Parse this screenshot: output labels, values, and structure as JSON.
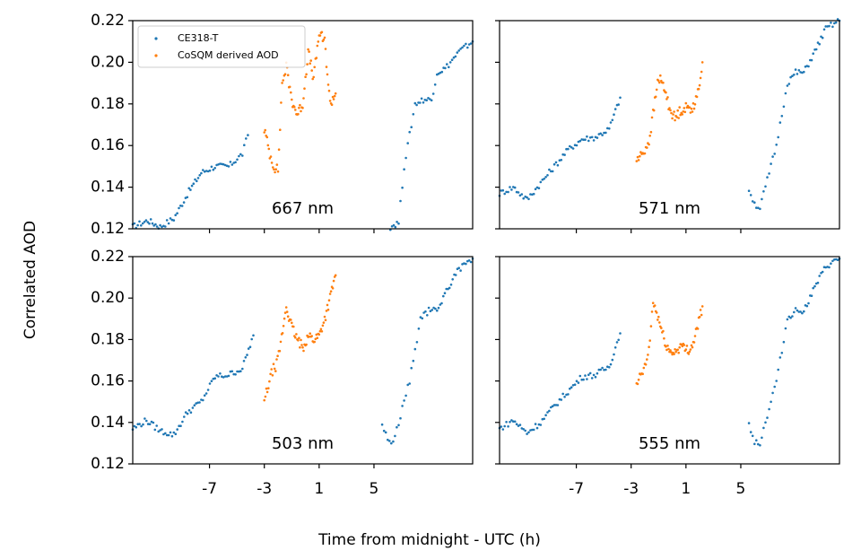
{
  "figure": {
    "xlabel": "Time from midnight - UTC (h)",
    "ylabel": "Correlated AOD"
  },
  "legend": {
    "entries": [
      {
        "label": "CE318-T",
        "color": "#1f77b4"
      },
      {
        "label": "CoSQM derived AOD",
        "color": "#ff7f0e"
      }
    ]
  },
  "chart_data": [
    {
      "type": "scatter",
      "panel_label": "667 nm",
      "xlim": [
        -12.6,
        12.2
      ],
      "ylim": [
        0.12,
        0.22
      ],
      "xticks": [
        "-7",
        "-3",
        "1",
        "5"
      ],
      "yticks": [
        "0.12",
        "0.14",
        "0.16",
        "0.18",
        "0.20",
        "0.22"
      ],
      "series": [
        {
          "name": "CE318-T",
          "color": "#1f77b4",
          "segments": [
            {
              "x": [
                -12.6,
                -11.5,
                -10.6,
                -9.6,
                -8.5,
                -7.6,
                -6.6,
                -5.6,
                -4.6,
                -4.2
              ],
              "y": [
                0.121,
                0.124,
                0.121,
                0.125,
                0.138,
                0.147,
                0.15,
                0.15,
                0.156,
                0.165
              ]
            },
            {
              "x": [
                6.2,
                6.8,
                7.2,
                7.6,
                8.0,
                8.6,
                9.2,
                9.6,
                10.2,
                11.2,
                12.2
              ],
              "y": [
                0.121,
                0.123,
                0.15,
                0.165,
                0.18,
                0.182,
                0.182,
                0.195,
                0.197,
                0.205,
                0.21
              ]
            }
          ]
        },
        {
          "name": "CoSQM derived AOD",
          "color": "#ff7f0e",
          "segments": [
            {
              "x": [
                -3.0,
                -2.6,
                -2.3,
                -2.0,
                -1.7,
                -1.4,
                -1.0,
                -0.6,
                -0.2,
                0.2,
                0.6,
                1.0,
                1.4,
                1.8,
                2.2
              ],
              "y": [
                0.168,
                0.156,
                0.15,
                0.148,
                0.19,
                0.198,
                0.182,
                0.175,
                0.18,
                0.205,
                0.192,
                0.214,
                0.21,
                0.18,
                0.185
              ]
            }
          ]
        }
      ]
    },
    {
      "type": "scatter",
      "panel_label": "571 nm",
      "xlim": [
        -12.6,
        12.2
      ],
      "ylim": [
        0.12,
        0.22
      ],
      "xticks": [
        "-7",
        "-3",
        "1",
        "5"
      ],
      "yticks": [
        "0.12",
        "0.14",
        "0.16",
        "0.18",
        "0.20",
        "0.22"
      ],
      "series": [
        {
          "name": "CE318-T",
          "color": "#1f77b4",
          "segments": [
            {
              "x": [
                -12.6,
                -11.6,
                -10.6,
                -9.6,
                -8.6,
                -7.6,
                -6.6,
                -5.6,
                -4.6,
                -3.8
              ],
              "y": [
                0.137,
                0.14,
                0.134,
                0.142,
                0.15,
                0.158,
                0.163,
                0.164,
                0.168,
                0.183
              ]
            },
            {
              "x": [
                5.6,
                6.0,
                6.4,
                6.8,
                7.2,
                7.6,
                8.0,
                8.4,
                9.0,
                9.6,
                10.4,
                11.2,
                12.2
              ],
              "y": [
                0.139,
                0.132,
                0.13,
                0.14,
                0.15,
                0.16,
                0.175,
                0.19,
                0.195,
                0.195,
                0.205,
                0.216,
                0.22
              ]
            }
          ]
        },
        {
          "name": "CoSQM derived AOD",
          "color": "#ff7f0e",
          "segments": [
            {
              "x": [
                -2.6,
                -2.3,
                -2.0,
                -1.7,
                -1.4,
                -1.0,
                -0.6,
                -0.2,
                0.2,
                0.6,
                1.0,
                1.4,
                1.8,
                2.2
              ],
              "y": [
                0.153,
                0.155,
                0.158,
                0.162,
                0.175,
                0.193,
                0.188,
                0.178,
                0.173,
                0.177,
                0.178,
                0.178,
                0.182,
                0.2
              ]
            }
          ]
        }
      ]
    },
    {
      "type": "scatter",
      "panel_label": "503 nm",
      "xlim": [
        -12.6,
        12.2
      ],
      "ylim": [
        0.12,
        0.22
      ],
      "xticks": [
        "-7",
        "-3",
        "1",
        "5"
      ],
      "yticks": [
        "0.12",
        "0.14",
        "0.16",
        "0.18",
        "0.20",
        "0.22"
      ],
      "series": [
        {
          "name": "CE318-T",
          "color": "#1f77b4",
          "segments": [
            {
              "x": [
                -12.6,
                -11.6,
                -10.6,
                -9.6,
                -8.6,
                -7.6,
                -6.6,
                -5.6,
                -4.6,
                -3.8
              ],
              "y": [
                0.137,
                0.141,
                0.136,
                0.134,
                0.145,
                0.15,
                0.162,
                0.163,
                0.166,
                0.182
              ]
            },
            {
              "x": [
                5.6,
                6.0,
                6.4,
                6.8,
                7.2,
                7.6,
                8.0,
                8.4,
                9.0,
                9.6,
                10.4,
                11.2,
                12.2
              ],
              "y": [
                0.139,
                0.132,
                0.13,
                0.14,
                0.15,
                0.16,
                0.175,
                0.19,
                0.194,
                0.194,
                0.205,
                0.214,
                0.219
              ]
            }
          ]
        },
        {
          "name": "CoSQM derived AOD",
          "color": "#ff7f0e",
          "segments": [
            {
              "x": [
                -3.0,
                -2.7,
                -2.4,
                -2.1,
                -1.8,
                -1.4,
                -1.0,
                -0.6,
                -0.2,
                0.2,
                0.6,
                1.0,
                1.4,
                1.8,
                2.2
              ],
              "y": [
                0.15,
                0.158,
                0.165,
                0.168,
                0.178,
                0.196,
                0.186,
                0.18,
                0.176,
                0.182,
                0.18,
                0.182,
                0.19,
                0.2,
                0.211
              ]
            }
          ]
        }
      ]
    },
    {
      "type": "scatter",
      "panel_label": "555 nm",
      "xlim": [
        -12.6,
        12.2
      ],
      "ylim": [
        0.12,
        0.22
      ],
      "xticks": [
        "-7",
        "-3",
        "1",
        "5"
      ],
      "yticks": [
        "0.12",
        "0.14",
        "0.16",
        "0.18",
        "0.20",
        "0.22"
      ],
      "series": [
        {
          "name": "CE318-T",
          "color": "#1f77b4",
          "segments": [
            {
              "x": [
                -12.6,
                -11.6,
                -10.6,
                -9.6,
                -8.6,
                -7.6,
                -6.6,
                -5.6,
                -4.6,
                -3.8
              ],
              "y": [
                0.137,
                0.141,
                0.135,
                0.14,
                0.148,
                0.155,
                0.162,
                0.163,
                0.167,
                0.183
              ]
            },
            {
              "x": [
                5.6,
                6.0,
                6.4,
                6.8,
                7.2,
                7.6,
                8.0,
                8.4,
                9.0,
                9.6,
                10.4,
                11.2,
                12.2
              ],
              "y": [
                0.139,
                0.131,
                0.13,
                0.14,
                0.15,
                0.16,
                0.175,
                0.19,
                0.194,
                0.194,
                0.205,
                0.215,
                0.219
              ]
            }
          ]
        },
        {
          "name": "CoSQM derived AOD",
          "color": "#ff7f0e",
          "segments": [
            {
              "x": [
                -2.6,
                -2.3,
                -2.0,
                -1.7,
                -1.4,
                -1.0,
                -0.6,
                -0.2,
                0.2,
                0.6,
                1.0,
                1.4,
                1.8,
                2.2
              ],
              "y": [
                0.157,
                0.163,
                0.166,
                0.175,
                0.198,
                0.19,
                0.18,
                0.174,
                0.174,
                0.177,
                0.175,
                0.176,
                0.185,
                0.196
              ]
            }
          ]
        }
      ]
    }
  ]
}
